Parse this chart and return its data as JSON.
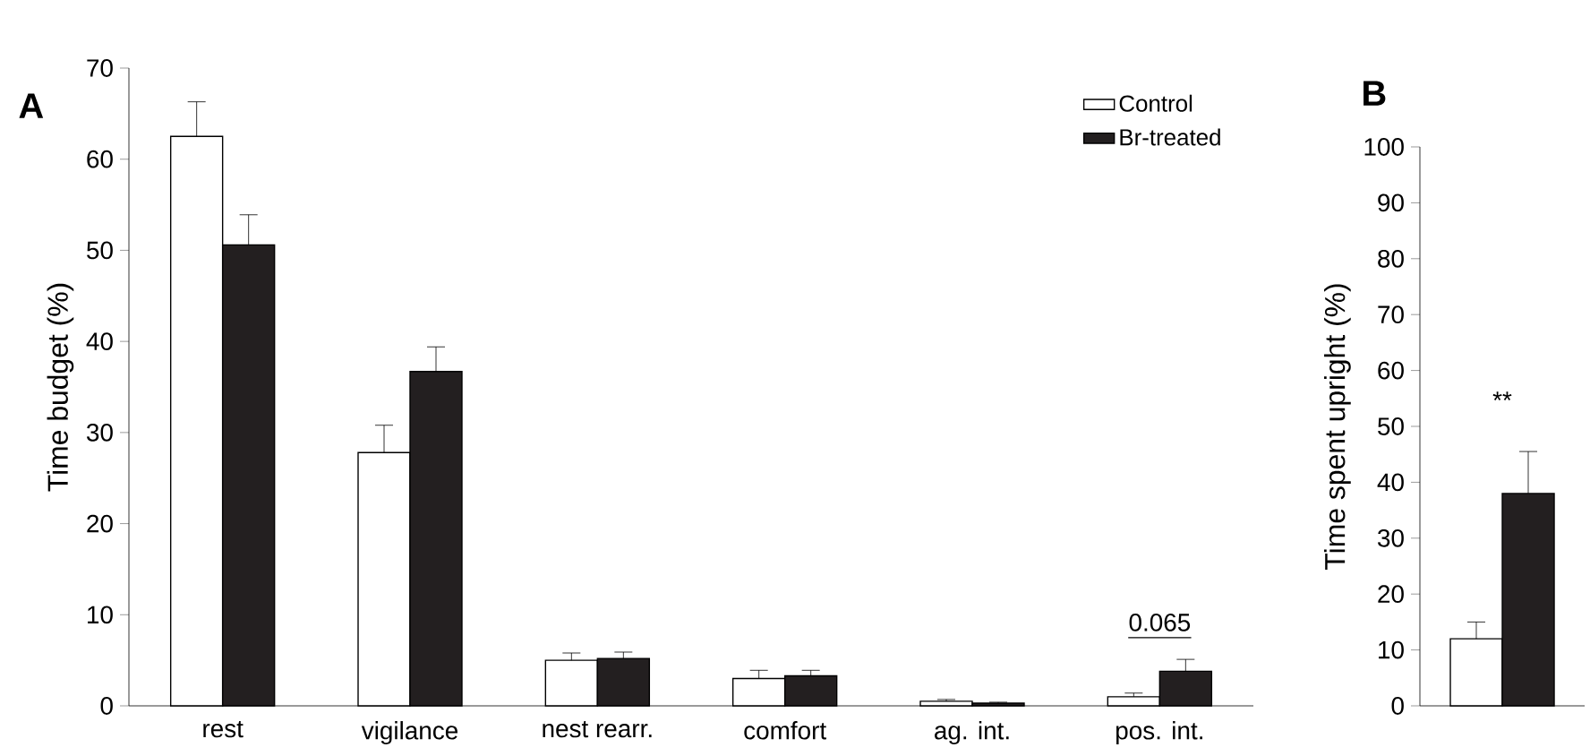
{
  "chart_data": [
    {
      "type": "bar",
      "title": "A",
      "ylabel": "Time budget (%)",
      "categories": [
        "rest",
        "vigilance",
        "nest rearr.",
        "comfort",
        "ag. int.",
        "pos. int."
      ],
      "series": [
        {
          "name": "Control",
          "color": "#ffffff",
          "values": [
            62.5,
            27.8,
            5.0,
            3.0,
            0.5,
            1.0
          ],
          "errors": [
            3.8,
            3.0,
            0.8,
            0.9,
            0.2,
            0.4
          ]
        },
        {
          "name": "Br-treated",
          "color": "#231f20",
          "values": [
            50.6,
            36.7,
            5.2,
            3.3,
            0.3,
            3.8
          ],
          "errors": [
            3.3,
            2.7,
            0.7,
            0.6,
            0.1,
            1.3
          ]
        }
      ],
      "ylim": [
        0,
        70
      ],
      "yticks": [
        0,
        10,
        20,
        30,
        40,
        50,
        60,
        70
      ],
      "legend": "top right",
      "annotations": [
        "0.065"
      ]
    },
    {
      "type": "bar",
      "title": "B",
      "ylabel": "Time spent upright (%)",
      "categories": [
        null
      ],
      "series": [
        {
          "color": "#ffffff",
          "values": [
            12
          ],
          "errors": [
            3
          ]
        },
        {
          "color": "#231f20",
          "values": [
            38
          ],
          "errors": [
            7.5
          ]
        }
      ],
      "ylim": [
        0,
        100
      ],
      "yticks": [
        0,
        10,
        20,
        30,
        40,
        50,
        60,
        70,
        80,
        90,
        100
      ],
      "annotations": [
        "**"
      ]
    }
  ]
}
